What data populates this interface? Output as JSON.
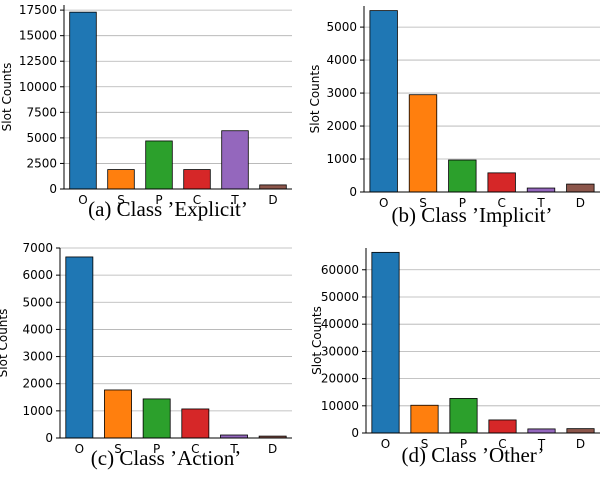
{
  "chart_data": [
    {
      "type": "bar",
      "caption": "(a) Class ’Explicit’",
      "y_label": "Slot Counts",
      "categories": [
        "O",
        "S",
        "P",
        "C",
        "T",
        "D"
      ],
      "values": [
        17300,
        1900,
        4700,
        1900,
        5700,
        400
      ],
      "colors": [
        "#1f77b4",
        "#ff7f0e",
        "#2ca02c",
        "#d62728",
        "#9467bd",
        "#8c564b"
      ],
      "ylim": [
        0,
        18000
      ],
      "yticks": [
        0,
        2500,
        5000,
        7500,
        10000,
        12500,
        15000,
        17500
      ],
      "grid": true
    },
    {
      "type": "bar",
      "caption": "(b) Class ’Implicit’",
      "y_label": "Slot Counts",
      "categories": [
        "O",
        "S",
        "P",
        "C",
        "T",
        "D"
      ],
      "values": [
        5500,
        2950,
        970,
        580,
        120,
        240
      ],
      "colors": [
        "#1f77b4",
        "#ff7f0e",
        "#2ca02c",
        "#d62728",
        "#9467bd",
        "#8c564b"
      ],
      "ylim": [
        0,
        5640
      ],
      "yticks": [
        0,
        1000,
        2000,
        3000,
        4000,
        5000
      ],
      "grid": true
    },
    {
      "type": "bar",
      "caption": "(c) Class ’Action’",
      "y_label": "Slot Counts",
      "categories": [
        "O",
        "S",
        "P",
        "C",
        "T",
        "D"
      ],
      "values": [
        6670,
        1770,
        1440,
        1070,
        110,
        70
      ],
      "colors": [
        "#1f77b4",
        "#ff7f0e",
        "#2ca02c",
        "#d62728",
        "#9467bd",
        "#8c564b"
      ],
      "ylim": [
        0,
        7000
      ],
      "yticks": [
        0,
        1000,
        2000,
        3000,
        4000,
        5000,
        6000,
        7000
      ],
      "grid": true
    },
    {
      "type": "bar",
      "caption": "(d) Class ’Other’",
      "y_label": "Slot Counts",
      "categories": [
        "O",
        "S",
        "P",
        "C",
        "T",
        "D"
      ],
      "values": [
        66400,
        10200,
        12700,
        4800,
        1500,
        1600
      ],
      "colors": [
        "#1f77b4",
        "#ff7f0e",
        "#2ca02c",
        "#d62728",
        "#9467bd",
        "#8c564b"
      ],
      "ylim": [
        0,
        68000
      ],
      "yticks": [
        0,
        10000,
        20000,
        30000,
        40000,
        50000,
        60000
      ],
      "grid": true
    }
  ]
}
